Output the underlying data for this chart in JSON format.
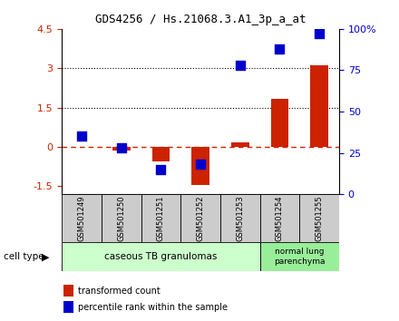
{
  "title": "GDS4256 / Hs.21068.3.A1_3p_a_at",
  "samples": [
    "GSM501249",
    "GSM501250",
    "GSM501251",
    "GSM501252",
    "GSM501253",
    "GSM501254",
    "GSM501255"
  ],
  "transformed_count": [
    0.0,
    -0.12,
    -0.55,
    -1.45,
    0.18,
    1.85,
    3.1
  ],
  "percentile_rank": [
    35,
    28,
    15,
    18,
    78,
    88,
    97
  ],
  "ylim_left": [
    -1.8,
    4.5
  ],
  "ylim_right": [
    0,
    100
  ],
  "yticks_left": [
    -1.5,
    0,
    1.5,
    3,
    4.5
  ],
  "ytick_labels_left": [
    "-1.5",
    "0",
    "1.5",
    "3",
    "4.5"
  ],
  "ytick_labels_right": [
    "0",
    "25",
    "50",
    "75",
    "100%"
  ],
  "yticks_right": [
    0,
    25,
    50,
    75,
    100
  ],
  "hline_values": [
    1.5,
    3.0
  ],
  "dashed_hline": 0.0,
  "bar_color": "#cc2200",
  "dot_color": "#0000cc",
  "bar_width": 0.45,
  "dot_size": 45,
  "group1_label": "caseous TB granulomas",
  "group2_label": "normal lung\nparenchyma",
  "group1_color": "#ccffcc",
  "group2_color": "#99ee99",
  "sample_bg_color": "#cccccc",
  "legend_bar_label": "transformed count",
  "legend_dot_label": "percentile rank within the sample",
  "cell_type_label": "cell type"
}
